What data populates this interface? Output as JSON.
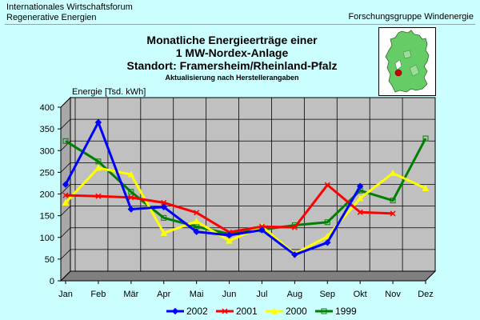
{
  "header": {
    "org_line1": "Internationales Wirtschaftsforum",
    "org_line2": "Regenerative Energien",
    "group": "Forschungsgruppe Windenergie"
  },
  "chart_data": {
    "type": "line",
    "title": "Monatliche Energieerträge einer",
    "title_line2": "1 MW-Nordex-Anlage",
    "title_line3": "Standort: Framersheim/Rheinland-Pfalz",
    "subtitle": "Aktualisierung nach Herstellerangaben",
    "ylabel": "Energie [Tsd. kWh]",
    "xlabel": "",
    "ylim": [
      0,
      400
    ],
    "yticks": [
      0,
      50,
      100,
      150,
      200,
      250,
      300,
      350,
      400
    ],
    "grid": true,
    "legend_position": "bottom",
    "categories": [
      "Jan",
      "Feb",
      "Mär",
      "Apr",
      "Mai",
      "Jun",
      "Jul",
      "Aug",
      "Sep",
      "Okt",
      "Nov",
      "Dez"
    ],
    "series": [
      {
        "name": "2002",
        "color": "#0000ff",
        "marker": "diamond",
        "values": [
          222,
          365,
          165,
          170,
          113,
          105,
          117,
          60,
          88,
          218,
          null,
          null
        ]
      },
      {
        "name": "2001",
        "color": "#ff0000",
        "marker": "x",
        "values": [
          197,
          195,
          192,
          180,
          157,
          112,
          125,
          123,
          221,
          158,
          155,
          null
        ]
      },
      {
        "name": "2000",
        "color": "#ffff00",
        "marker": "triangle",
        "values": [
          180,
          260,
          245,
          110,
          137,
          92,
          125,
          62,
          102,
          190,
          248,
          213
        ]
      },
      {
        "name": "1999",
        "color": "#008000",
        "marker": "square",
        "values": [
          322,
          275,
          205,
          145,
          125,
          108,
          118,
          128,
          135,
          208,
          185,
          328
        ]
      }
    ]
  },
  "map": {
    "icon": "germany-map-icon",
    "background": "#66cc66",
    "marker_color": "#cc0000"
  }
}
